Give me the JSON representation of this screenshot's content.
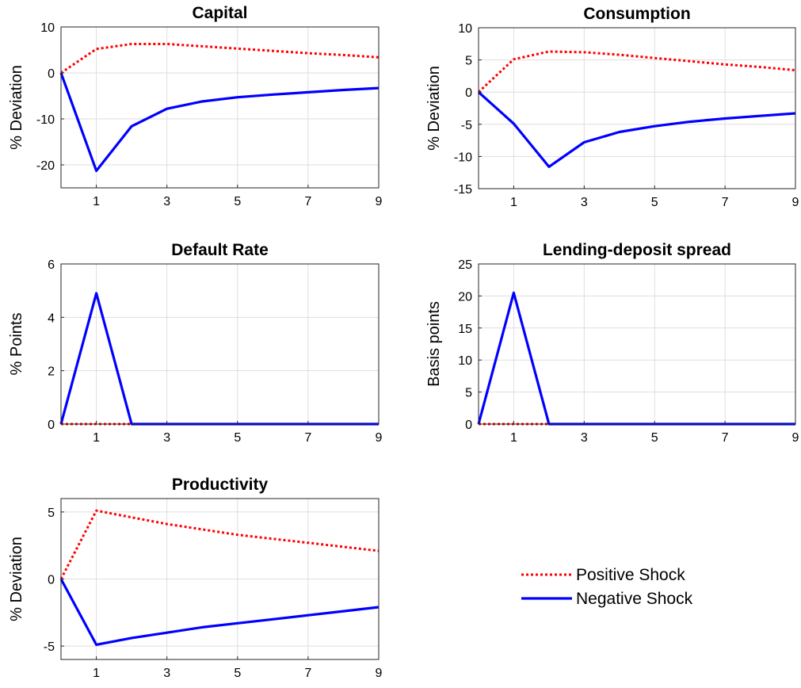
{
  "colors": {
    "positive": "#ff0000",
    "negative": "#0000ff",
    "grid": "#dedede",
    "axis": "#262626"
  },
  "chart_data": [
    {
      "type": "line",
      "title": "Capital",
      "xlabel": "",
      "ylabel": "% Deviation",
      "xlim": [
        0,
        9
      ],
      "ylim": [
        -25,
        10
      ],
      "xticks": [
        1,
        3,
        5,
        7,
        9
      ],
      "yticks": [
        -20,
        -10,
        0,
        10
      ],
      "x": [
        0,
        1,
        2,
        3,
        4,
        5,
        6,
        7,
        8,
        9
      ],
      "series": [
        {
          "name": "Positive Shock",
          "style": "dotted",
          "color": "#ff0000",
          "values": [
            0,
            5.2,
            6.3,
            6.3,
            5.8,
            5.3,
            4.8,
            4.3,
            3.9,
            3.4
          ]
        },
        {
          "name": "Negative Shock",
          "style": "solid",
          "color": "#0000ff",
          "values": [
            0,
            -21.3,
            -11.6,
            -7.8,
            -6.2,
            -5.3,
            -4.7,
            -4.2,
            -3.7,
            -3.3
          ]
        }
      ]
    },
    {
      "type": "line",
      "title": "Consumption",
      "xlabel": "",
      "ylabel": "% Deviation",
      "xlim": [
        0,
        9
      ],
      "ylim": [
        -15,
        10
      ],
      "xticks": [
        1,
        3,
        5,
        7,
        9
      ],
      "yticks": [
        -15,
        -10,
        -5,
        0,
        5,
        10
      ],
      "x": [
        0,
        1,
        2,
        3,
        4,
        5,
        6,
        7,
        8,
        9
      ],
      "series": [
        {
          "name": "Positive Shock",
          "style": "dotted",
          "color": "#ff0000",
          "values": [
            0,
            5.1,
            6.3,
            6.2,
            5.8,
            5.3,
            4.8,
            4.3,
            3.9,
            3.4
          ]
        },
        {
          "name": "Negative Shock",
          "style": "solid",
          "color": "#0000ff",
          "values": [
            0,
            -4.9,
            -11.6,
            -7.8,
            -6.2,
            -5.3,
            -4.6,
            -4.1,
            -3.7,
            -3.3
          ]
        }
      ]
    },
    {
      "type": "line",
      "title": "Default Rate",
      "xlabel": "",
      "ylabel": "% Points",
      "xlim": [
        0,
        9
      ],
      "ylim": [
        0,
        6
      ],
      "xticks": [
        1,
        3,
        5,
        7,
        9
      ],
      "yticks": [
        0,
        2,
        4,
        6
      ],
      "x": [
        0,
        1,
        2,
        3,
        4,
        5,
        6,
        7,
        8,
        9
      ],
      "series": [
        {
          "name": "Positive Shock",
          "style": "dotted",
          "color": "#ff0000",
          "values": [
            0,
            0,
            0,
            0,
            0,
            0,
            0,
            0,
            0,
            0
          ]
        },
        {
          "name": "Negative Shock",
          "style": "solid",
          "color": "#0000ff",
          "values": [
            0,
            4.9,
            0,
            0,
            0,
            0,
            0,
            0,
            0,
            0
          ]
        }
      ]
    },
    {
      "type": "line",
      "title": "Lending-deposit spread",
      "xlabel": "",
      "ylabel": "Basis points",
      "xlim": [
        0,
        9
      ],
      "ylim": [
        0,
        25
      ],
      "xticks": [
        1,
        3,
        5,
        7,
        9
      ],
      "yticks": [
        0,
        5,
        10,
        15,
        20,
        25
      ],
      "x": [
        0,
        1,
        2,
        3,
        4,
        5,
        6,
        7,
        8,
        9
      ],
      "series": [
        {
          "name": "Positive Shock",
          "style": "dotted",
          "color": "#ff0000",
          "values": [
            0,
            0,
            0,
            0,
            0,
            0,
            0,
            0,
            0,
            0
          ]
        },
        {
          "name": "Negative Shock",
          "style": "solid",
          "color": "#0000ff",
          "values": [
            0,
            20.5,
            0,
            0,
            0,
            0,
            0,
            0,
            0,
            0
          ]
        }
      ]
    },
    {
      "type": "line",
      "title": "Productivity",
      "xlabel": "",
      "ylabel": "% Deviation",
      "xlim": [
        0,
        9
      ],
      "ylim": [
        -6,
        6
      ],
      "xticks": [
        1,
        3,
        5,
        7,
        9
      ],
      "yticks": [
        -5,
        0,
        5
      ],
      "x": [
        0,
        1,
        2,
        3,
        4,
        5,
        6,
        7,
        8,
        9
      ],
      "series": [
        {
          "name": "Positive Shock",
          "style": "dotted",
          "color": "#ff0000",
          "values": [
            0,
            5.1,
            4.6,
            4.1,
            3.7,
            3.3,
            3.0,
            2.7,
            2.4,
            2.1
          ]
        },
        {
          "name": "Negative Shock",
          "style": "solid",
          "color": "#0000ff",
          "values": [
            0,
            -4.9,
            -4.4,
            -4.0,
            -3.6,
            -3.3,
            -3.0,
            -2.7,
            -2.4,
            -2.1
          ]
        }
      ]
    }
  ],
  "legend": {
    "position": "lower-right",
    "entries": [
      {
        "label": "Positive Shock",
        "style": "dotted",
        "color": "#ff0000"
      },
      {
        "label": "Negative Shock",
        "style": "solid",
        "color": "#0000ff"
      }
    ]
  }
}
